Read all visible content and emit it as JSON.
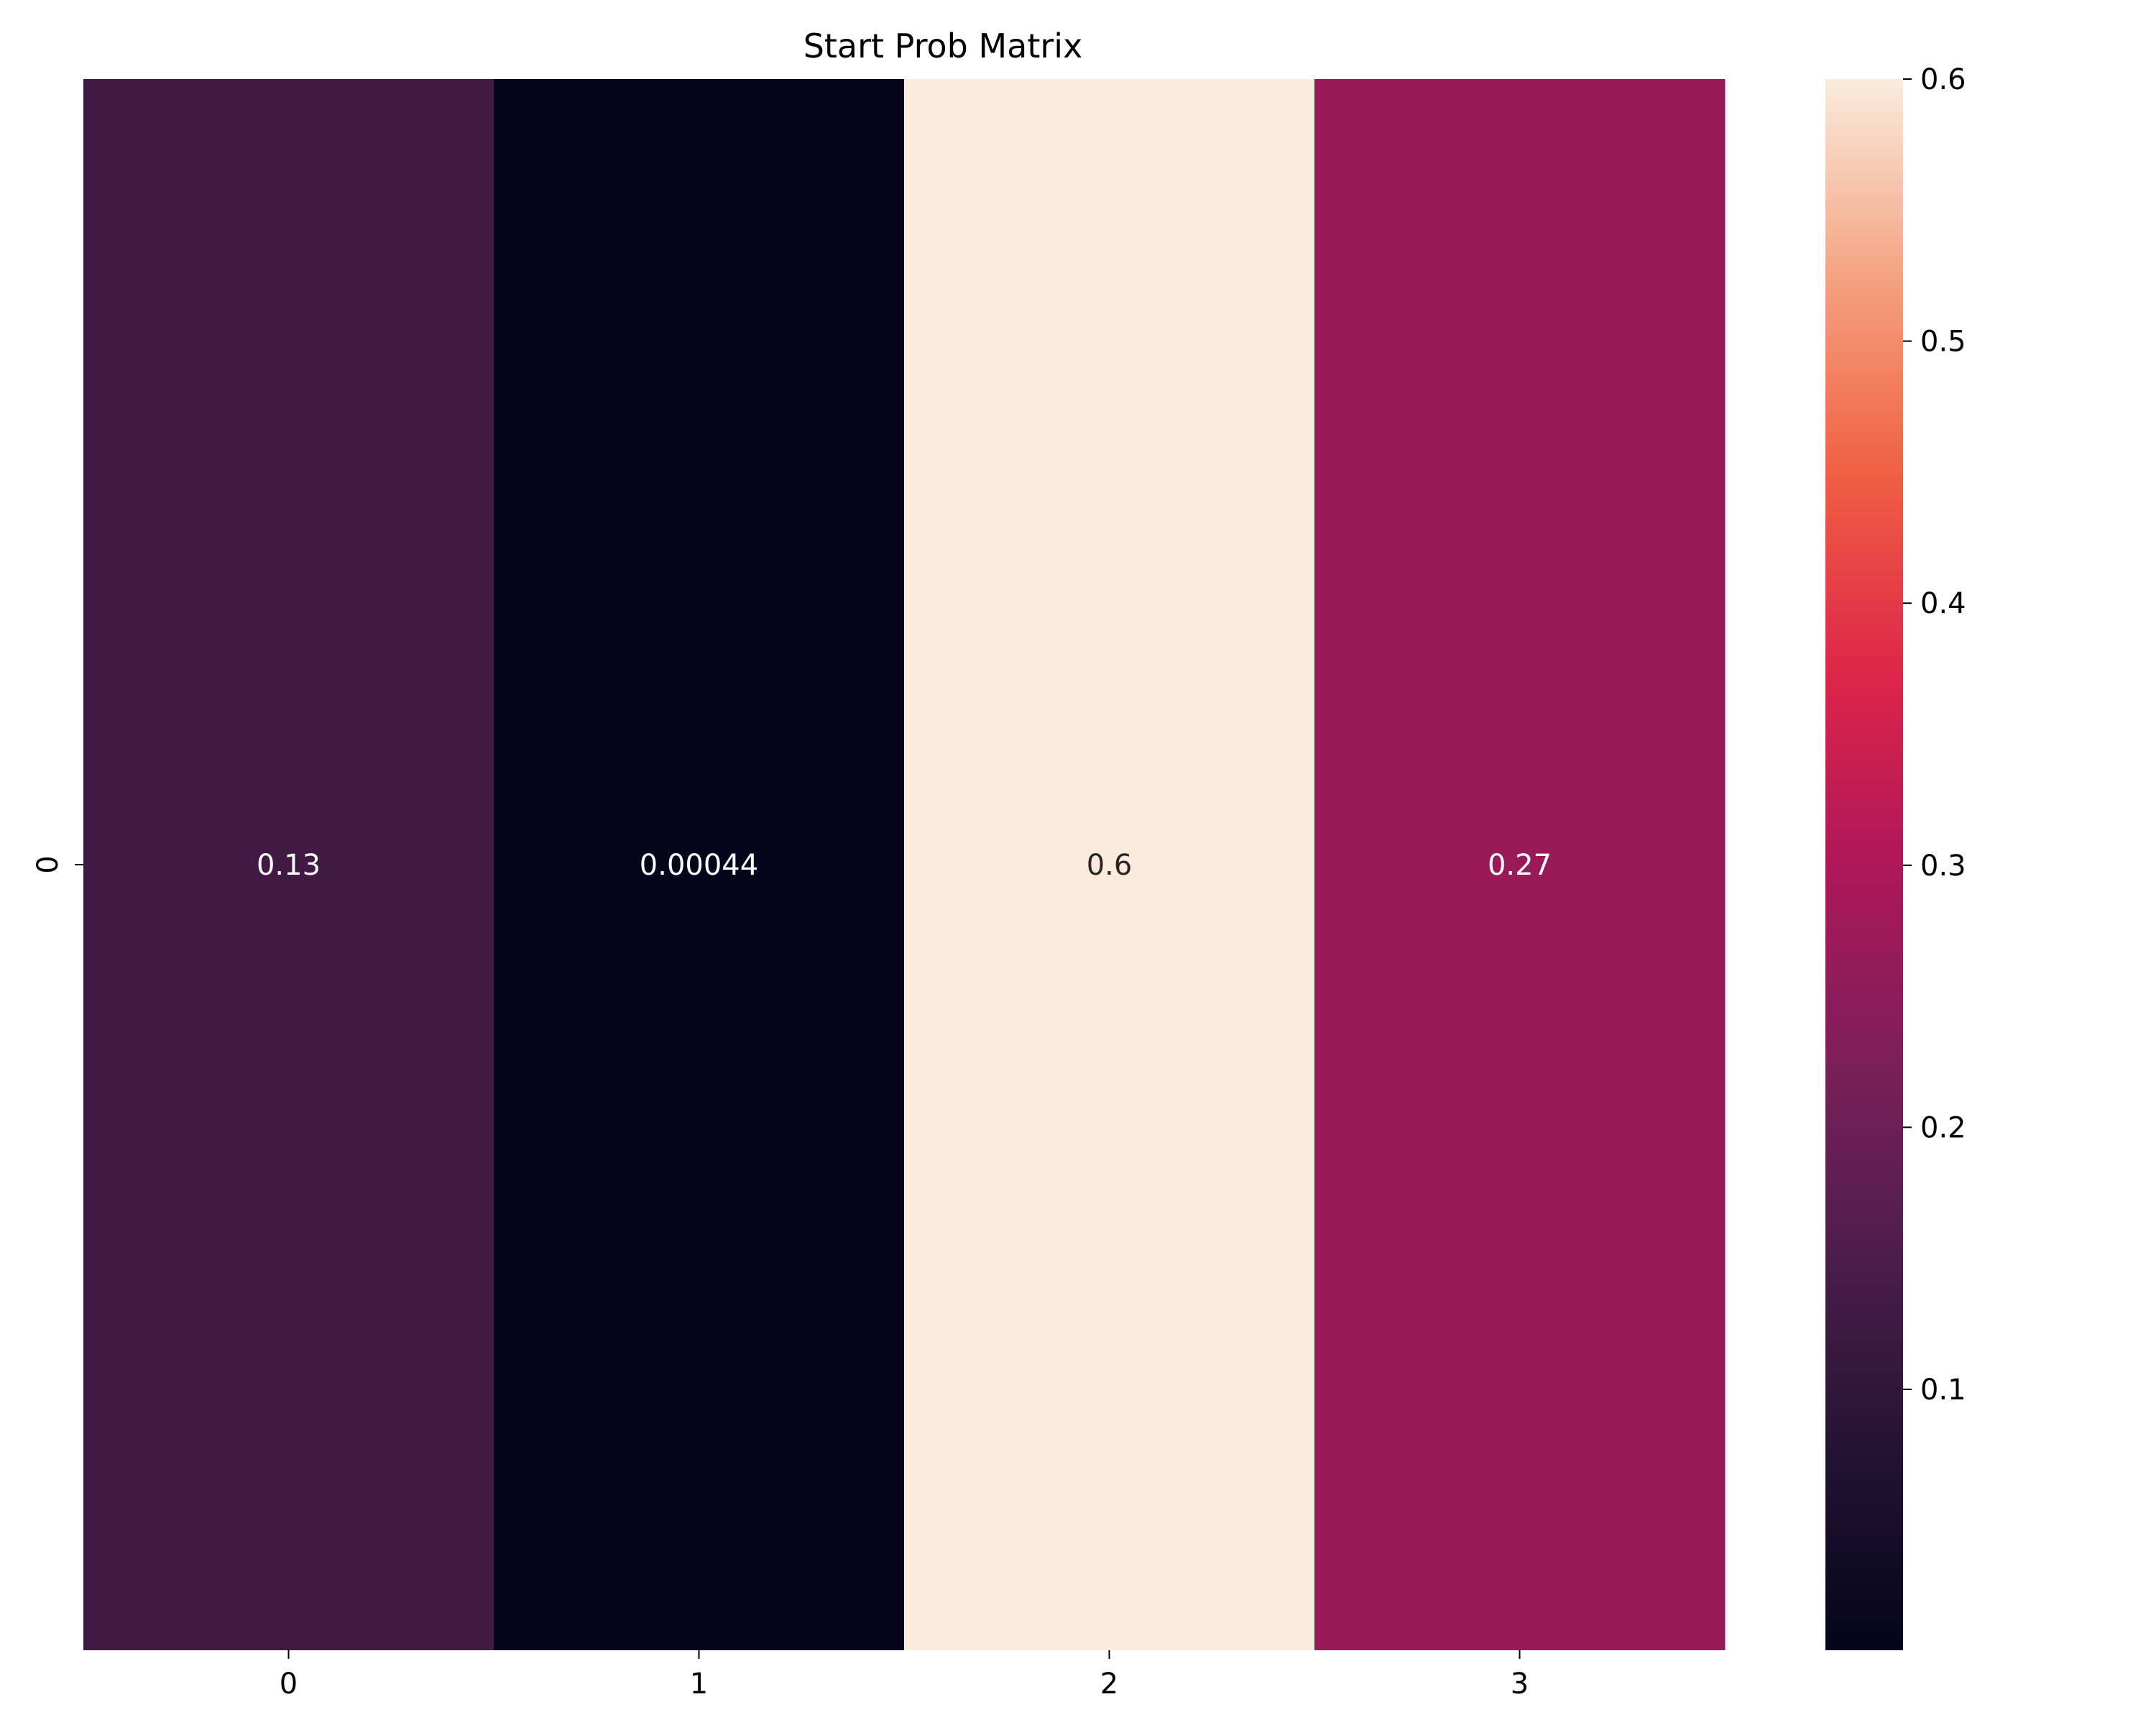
{
  "chart_data": {
    "type": "heatmap",
    "title": "Start Prob Matrix",
    "x_categories": [
      "0",
      "1",
      "2",
      "3"
    ],
    "y_categories": [
      "0"
    ],
    "values": [
      [
        0.13,
        0.00044,
        0.6,
        0.27
      ]
    ],
    "annotations": [
      [
        "0.13",
        "0.00044",
        "0.6",
        "0.27"
      ]
    ],
    "colormap": "rocket",
    "colorbar": {
      "range": [
        0.00044,
        0.6
      ],
      "ticks": [
        0.1,
        0.2,
        0.3,
        0.4,
        0.5,
        0.6
      ],
      "tick_labels": [
        "0.1",
        "0.2",
        "0.3",
        "0.4",
        "0.5",
        "0.6"
      ]
    },
    "grid": false,
    "legend": "colorbar-right"
  }
}
